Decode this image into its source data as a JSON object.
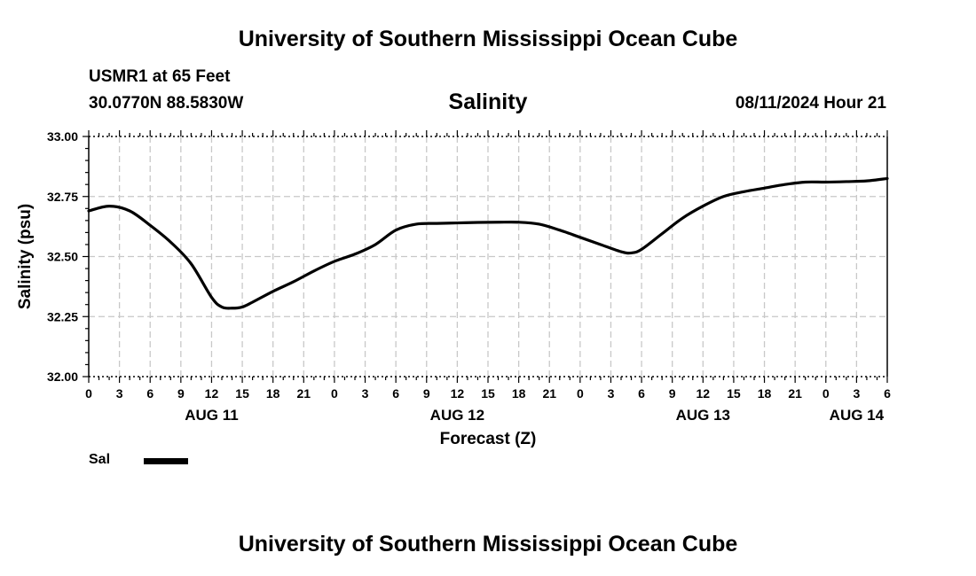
{
  "header": {
    "org_title": "University of Southern Mississippi Ocean Cube",
    "station": "USMR1 at 65 Feet",
    "coords": "30.0770N  88.5830W",
    "datetime": "08/11/2024 Hour 21",
    "org_title_bottom": "University of Southern Mississippi Ocean Cube"
  },
  "legend": {
    "label": "Sal"
  },
  "colors": {
    "line": "#000000",
    "grid": "#c8c8c8",
    "axis": "#000000"
  },
  "chart_data": {
    "type": "line",
    "title": "Salinity",
    "xlabel": "Forecast (Z)",
    "ylabel": "Salinity (psu)",
    "xlim": [
      0,
      78
    ],
    "ylim": [
      32.0,
      33.0
    ],
    "yticks": [
      "32.00",
      "32.25",
      "32.50",
      "32.75",
      "33.00"
    ],
    "ytick_values": [
      32.0,
      32.25,
      32.5,
      32.75,
      33.0
    ],
    "xticks": [
      "0",
      "3",
      "6",
      "9",
      "12",
      "15",
      "18",
      "21",
      "0",
      "3",
      "6",
      "9",
      "12",
      "15",
      "18",
      "21",
      "0",
      "3",
      "6",
      "9",
      "12",
      "15",
      "18",
      "21",
      "0",
      "3",
      "6"
    ],
    "date_labels": [
      {
        "label": "AUG 11",
        "hour": 12
      },
      {
        "label": "AUG 12",
        "hour": 36
      },
      {
        "label": "AUG 13",
        "hour": 60
      },
      {
        "label": "AUG 14",
        "hour": 75
      }
    ],
    "grid": true,
    "series": [
      {
        "name": "Sal",
        "x": [
          0,
          2,
          4,
          6,
          8,
          10,
          12,
          13,
          14,
          15,
          16,
          18,
          20,
          22,
          24,
          26,
          28,
          30,
          32,
          34,
          36,
          38,
          40,
          42,
          44,
          46,
          48,
          50,
          52,
          53,
          54,
          56,
          58,
          60,
          62,
          64,
          66,
          68,
          70,
          72,
          74,
          76,
          78
        ],
        "values": [
          32.69,
          32.71,
          32.69,
          32.63,
          32.56,
          32.47,
          32.33,
          32.29,
          32.285,
          32.29,
          32.31,
          32.355,
          32.395,
          32.44,
          32.48,
          32.51,
          32.55,
          32.61,
          32.635,
          32.638,
          32.64,
          32.642,
          32.643,
          32.643,
          32.635,
          32.61,
          32.58,
          32.55,
          32.52,
          32.515,
          32.53,
          32.595,
          32.66,
          32.71,
          32.75,
          32.77,
          32.785,
          32.8,
          32.81,
          32.81,
          32.812,
          32.815,
          32.825
        ]
      }
    ]
  }
}
